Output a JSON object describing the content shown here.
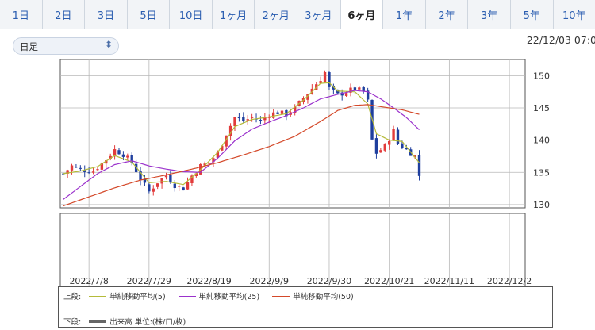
{
  "tabs": [
    {
      "label": "1日",
      "active": false
    },
    {
      "label": "2日",
      "active": false
    },
    {
      "label": "3日",
      "active": false
    },
    {
      "label": "5日",
      "active": false
    },
    {
      "label": "10日",
      "active": false
    },
    {
      "label": "1ヶ月",
      "active": false
    },
    {
      "label": "2ヶ月",
      "active": false
    },
    {
      "label": "3ヶ月",
      "active": false
    },
    {
      "label": "6ヶ月",
      "active": true
    },
    {
      "label": "1年",
      "active": false
    },
    {
      "label": "2年",
      "active": false
    },
    {
      "label": "3年",
      "active": false
    },
    {
      "label": "5年",
      "active": false
    },
    {
      "label": "10年",
      "active": false
    }
  ],
  "period_select": {
    "value": "日足",
    "icon": "up-down-chevron-icon"
  },
  "timestamp": "22/12/03 07:0",
  "legend": {
    "upper_label": "上段:",
    "lower_label": "下段:",
    "items": [
      {
        "label": "単純移動平均(5)",
        "color": "#b5bb3a"
      },
      {
        "label": "単純移動平均(25)",
        "color": "#9b32cc"
      },
      {
        "label": "単純移動平均(50)",
        "color": "#d4492a"
      }
    ],
    "volume": {
      "label": "出来高 単位:(株/口/枚)",
      "color": "#666666"
    }
  },
  "colors": {
    "up": "#e23b3b",
    "down": "#1f3f9e",
    "grid": "#b8b8b8"
  },
  "chart_data": {
    "type": "candlestick",
    "y_ticks": [
      150,
      145,
      140,
      135,
      130
    ],
    "ylim": [
      129.5,
      152.5
    ],
    "x_tick_labels": [
      "2022/7/8",
      "2022/7/29",
      "2022/8/19",
      "2022/9/9",
      "2022/9/30",
      "2022/10/21",
      "2022/11/11",
      "2022/12/2"
    ],
    "x_tick_positions": [
      6,
      20,
      34,
      48,
      62,
      76,
      90,
      104
    ],
    "close_path": [
      [
        0,
        134.8
      ],
      [
        2,
        136.0
      ],
      [
        4,
        135.4
      ],
      [
        7,
        135.2
      ],
      [
        10,
        137.0
      ],
      [
        12,
        138.5
      ],
      [
        14,
        137.8
      ],
      [
        16,
        136.5
      ],
      [
        18,
        134.0
      ],
      [
        20,
        132.0
      ],
      [
        22,
        133.5
      ],
      [
        24,
        134.5
      ],
      [
        26,
        133.0
      ],
      [
        28,
        132.5
      ],
      [
        30,
        134.5
      ],
      [
        32,
        136.0
      ],
      [
        34,
        136.5
      ],
      [
        36,
        138.0
      ],
      [
        38,
        141.0
      ],
      [
        40,
        143.5
      ],
      [
        42,
        143.0
      ],
      [
        44,
        143.5
      ],
      [
        46,
        143.0
      ],
      [
        48,
        144.0
      ],
      [
        50,
        144.3
      ],
      [
        52,
        144.0
      ],
      [
        54,
        145.0
      ],
      [
        56,
        146.5
      ],
      [
        58,
        148.0
      ],
      [
        60,
        149.5
      ],
      [
        61,
        150.5
      ],
      [
        62,
        148.0
      ],
      [
        64,
        147.0
      ],
      [
        66,
        147.5
      ],
      [
        68,
        148.0
      ],
      [
        70,
        147.5
      ],
      [
        71,
        146.0
      ],
      [
        72,
        140.0
      ],
      [
        73,
        138.0
      ],
      [
        75,
        139.0
      ],
      [
        77,
        141.5
      ],
      [
        78,
        139.5
      ],
      [
        80,
        138.5
      ],
      [
        82,
        137.5
      ],
      [
        83,
        134.5
      ]
    ],
    "series": [
      {
        "name": "単純移動平均(5)",
        "points": [
          [
            0,
            134.8
          ],
          [
            4,
            135.2
          ],
          [
            8,
            135.9
          ],
          [
            12,
            137.6
          ],
          [
            16,
            136.6
          ],
          [
            20,
            133.4
          ],
          [
            24,
            133.6
          ],
          [
            28,
            133.1
          ],
          [
            32,
            135.4
          ],
          [
            36,
            138.1
          ],
          [
            40,
            142.1
          ],
          [
            44,
            143.2
          ],
          [
            48,
            143.6
          ],
          [
            52,
            144.1
          ],
          [
            56,
            146.2
          ],
          [
            60,
            148.8
          ],
          [
            62,
            148.9
          ],
          [
            64,
            147.6
          ],
          [
            68,
            147.5
          ],
          [
            71,
            145.6
          ],
          [
            73,
            141.0
          ],
          [
            76,
            140.0
          ],
          [
            79,
            139.8
          ],
          [
            83,
            136.5
          ]
        ]
      },
      {
        "name": "単純移動平均(25)",
        "points": [
          [
            0,
            130.8
          ],
          [
            4,
            132.8
          ],
          [
            8,
            134.8
          ],
          [
            12,
            136.2
          ],
          [
            16,
            136.8
          ],
          [
            20,
            136.0
          ],
          [
            24,
            135.5
          ],
          [
            28,
            135.1
          ],
          [
            32,
            135.0
          ],
          [
            36,
            137.2
          ],
          [
            40,
            139.9
          ],
          [
            44,
            141.7
          ],
          [
            48,
            142.8
          ],
          [
            52,
            143.8
          ],
          [
            56,
            145.0
          ],
          [
            60,
            146.4
          ],
          [
            64,
            147.1
          ],
          [
            68,
            147.7
          ],
          [
            71,
            147.5
          ],
          [
            74,
            146.4
          ],
          [
            77,
            145.0
          ],
          [
            80,
            143.5
          ],
          [
            83,
            141.6
          ]
        ]
      },
      {
        "name": "単純移動平均(50)",
        "points": [
          [
            0,
            129.8
          ],
          [
            6,
            131.2
          ],
          [
            12,
            132.6
          ],
          [
            18,
            133.8
          ],
          [
            24,
            134.6
          ],
          [
            30,
            135.5
          ],
          [
            36,
            136.5
          ],
          [
            42,
            137.7
          ],
          [
            48,
            139.0
          ],
          [
            54,
            140.6
          ],
          [
            60,
            142.9
          ],
          [
            64,
            144.6
          ],
          [
            68,
            145.4
          ],
          [
            71,
            145.5
          ],
          [
            75,
            145.1
          ],
          [
            79,
            144.7
          ],
          [
            83,
            144.0
          ]
        ]
      }
    ]
  }
}
